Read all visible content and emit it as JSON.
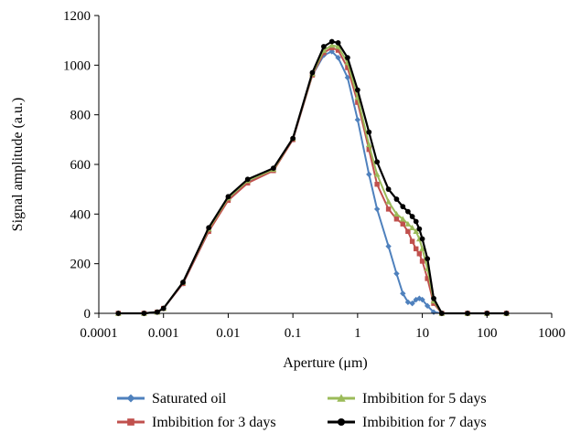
{
  "chart_data": {
    "type": "line",
    "title": "",
    "xlabel": "Aperture (μm)",
    "ylabel": "Signal amplitude (a.u.)",
    "x_scale": "log",
    "xlim": [
      0.0001,
      1000
    ],
    "ylim": [
      0,
      1200
    ],
    "x_ticks": [
      "0.0001",
      "0.001",
      "0.01",
      "0.1",
      "1",
      "10",
      "100",
      "1000"
    ],
    "y_ticks": [
      "0",
      "200",
      "400",
      "600",
      "800",
      "1000",
      "1200"
    ],
    "grid": false,
    "legend_position": "bottom",
    "series": [
      {
        "name": "Saturated oil",
        "color": "#4f81bd",
        "marker": "diamond",
        "x": [
          0.0002,
          0.0005,
          0.0008,
          0.001,
          0.002,
          0.005,
          0.01,
          0.02,
          0.05,
          0.1,
          0.2,
          0.3,
          0.4,
          0.5,
          0.7,
          1,
          1.5,
          2,
          3,
          4,
          5,
          6,
          7,
          8,
          9,
          10,
          12,
          15,
          20,
          50,
          100,
          200
        ],
        "y": [
          0,
          0,
          5,
          20,
          120,
          330,
          460,
          530,
          580,
          700,
          960,
          1040,
          1055,
          1030,
          950,
          780,
          560,
          420,
          270,
          160,
          80,
          45,
          40,
          55,
          60,
          55,
          30,
          5,
          0,
          0,
          0,
          0
        ]
      },
      {
        "name": "Imbibition for 3 days",
        "color": "#c0504d",
        "marker": "square",
        "x": [
          0.0002,
          0.0005,
          0.0008,
          0.001,
          0.002,
          0.005,
          0.01,
          0.02,
          0.05,
          0.1,
          0.2,
          0.3,
          0.4,
          0.5,
          0.7,
          1,
          1.5,
          2,
          3,
          4,
          5,
          6,
          7,
          8,
          9,
          10,
          12,
          15,
          20,
          50,
          100,
          200
        ],
        "y": [
          0,
          0,
          5,
          20,
          120,
          330,
          455,
          525,
          575,
          700,
          960,
          1050,
          1070,
          1060,
          990,
          850,
          660,
          520,
          420,
          380,
          360,
          330,
          290,
          260,
          240,
          210,
          140,
          40,
          0,
          0,
          0,
          0
        ]
      },
      {
        "name": "Imbibition for 5 days",
        "color": "#9bbb59",
        "marker": "triangle",
        "x": [
          0.0002,
          0.0005,
          0.0008,
          0.001,
          0.002,
          0.005,
          0.01,
          0.02,
          0.05,
          0.1,
          0.2,
          0.3,
          0.4,
          0.5,
          0.7,
          1,
          1.5,
          2,
          3,
          4,
          5,
          6,
          7,
          8,
          9,
          10,
          12,
          15,
          20,
          50,
          100,
          200
        ],
        "y": [
          0,
          0,
          5,
          20,
          125,
          340,
          465,
          535,
          580,
          705,
          965,
          1060,
          1080,
          1075,
          1010,
          870,
          680,
          560,
          450,
          400,
          380,
          360,
          345,
          330,
          300,
          260,
          180,
          50,
          0,
          0,
          0,
          0
        ]
      },
      {
        "name": "Imbibition for 7 days",
        "color": "#000000",
        "marker": "circle",
        "x": [
          0.0002,
          0.0005,
          0.0008,
          0.001,
          0.002,
          0.005,
          0.01,
          0.02,
          0.05,
          0.1,
          0.2,
          0.3,
          0.4,
          0.5,
          0.7,
          1,
          1.5,
          2,
          3,
          4,
          5,
          6,
          7,
          8,
          9,
          10,
          12,
          15,
          20,
          50,
          100,
          200
        ],
        "y": [
          0,
          0,
          5,
          20,
          125,
          345,
          470,
          540,
          585,
          705,
          970,
          1075,
          1095,
          1090,
          1030,
          900,
          730,
          610,
          500,
          460,
          430,
          410,
          390,
          370,
          340,
          300,
          220,
          60,
          0,
          0,
          0,
          0
        ]
      }
    ]
  }
}
